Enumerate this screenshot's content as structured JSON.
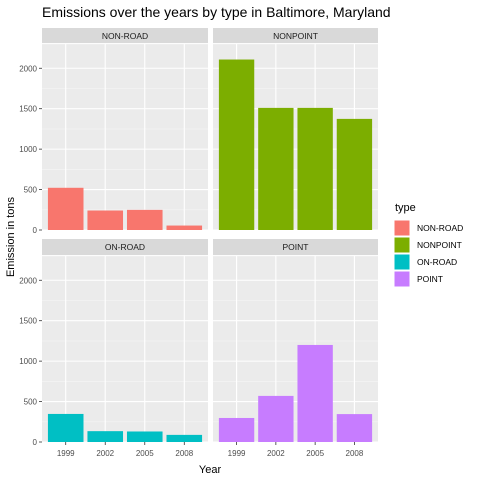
{
  "chart_data": {
    "type": "bar",
    "title": "Emissions over the years by type in Baltimore, Maryland",
    "xlabel": "Year",
    "ylabel": "Emission in tons",
    "categories": [
      "1999",
      "2002",
      "2005",
      "2008"
    ],
    "ylim": [
      0,
      2300
    ],
    "y_ticks": [
      0,
      500,
      1000,
      1500,
      2000
    ],
    "grid": true,
    "legend": {
      "title": "type",
      "placement": "right",
      "entries": [
        "NON-ROAD",
        "NONPOINT",
        "ON-ROAD",
        "POINT"
      ]
    },
    "facets": [
      {
        "name": "NON-ROAD",
        "values": [
          522,
          241,
          249,
          55
        ],
        "color": "#F8766D"
      },
      {
        "name": "NONPOINT",
        "values": [
          2108,
          1510,
          1510,
          1374
        ],
        "color": "#7CAE00"
      },
      {
        "name": "ON-ROAD",
        "values": [
          347,
          134,
          130,
          88
        ],
        "color": "#00BFC4"
      },
      {
        "name": "POINT",
        "values": [
          297,
          570,
          1200,
          345
        ],
        "color": "#C77CFF"
      }
    ]
  },
  "colors": {
    "panel_background": "#EBEBEB",
    "strip_background": "#D9D9D9",
    "grid_major": "#FFFFFF",
    "grid_minor": "#F5F5F5"
  }
}
